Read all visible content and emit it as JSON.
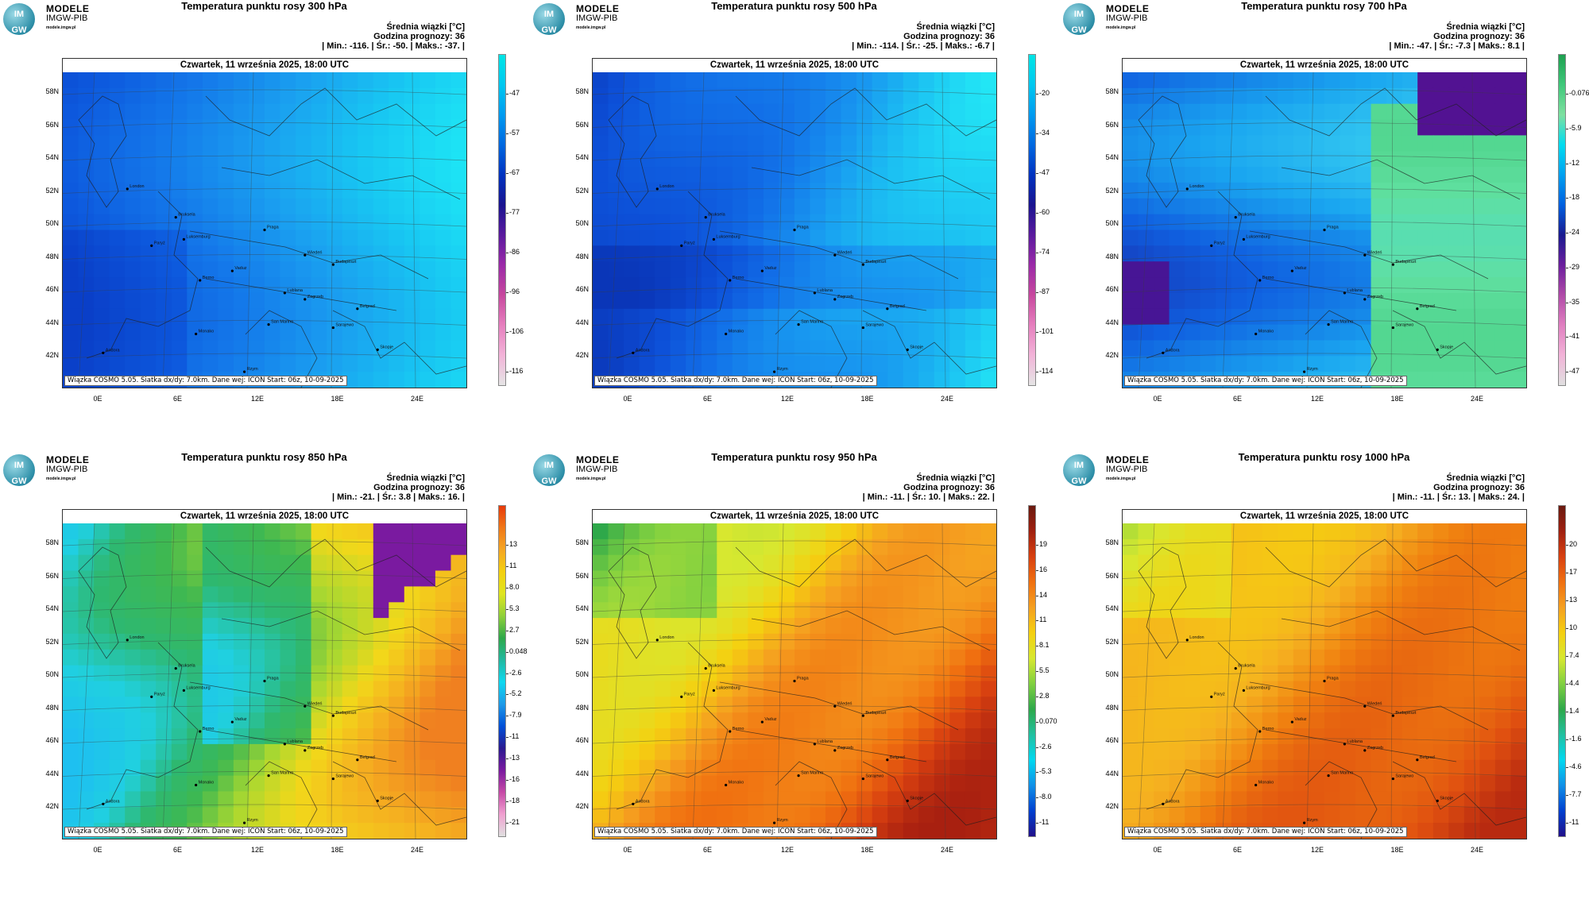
{
  "brand": {
    "line1": "MODELE",
    "line2": "IMGW-PIB",
    "url": "modele.imgw.pl",
    "circle_top": "IM",
    "circle_bottom": "GW"
  },
  "common": {
    "date": "Czwartek, 11 września 2025, 18:00 UTC",
    "unit_label": "Średnia wiązki [°C]",
    "hour_label": "Godzina prognozy: 36",
    "footer": "Wiązka COSMO 5.05. Siatka dx/dy: 7.0km. Dane wej: ICON Start: 06z, 10-09-2025",
    "lat_labels": [
      "58N",
      "56N",
      "54N",
      "52N",
      "50N",
      "48N",
      "46N",
      "44N",
      "42N"
    ],
    "lon_labels": [
      "0E",
      "6E",
      "12E",
      "18E",
      "24E"
    ],
    "cities": [
      "London",
      "Paryż",
      "Bruksela",
      "Luksemburg",
      "Berno",
      "Vaduz",
      "Praga",
      "Wiedeń",
      "Budapeszt",
      "Lublana",
      "Zagrzeb",
      "Sarajewo",
      "Belgrad",
      "Skopje",
      "Andora",
      "Monako",
      "San Marino",
      "Rzym"
    ]
  },
  "panels": [
    {
      "title": "Temperatura punktu rosy 300 hPa",
      "stats": "| Min.: -116. | Śr.: -50. | Maks.: -37. |",
      "ticks": [
        "-47",
        "-57",
        "-67",
        "-77",
        "-86",
        "-96",
        "-106",
        "-116"
      ],
      "scheme": "cold",
      "map_mode": "cold300"
    },
    {
      "title": "Temperatura punktu rosy 500 hPa",
      "stats": "| Min.: -114. | Śr.: -25. | Maks.: -6.7 |",
      "ticks": [
        "-20",
        "-34",
        "-47",
        "-60",
        "-74",
        "-87",
        "-101",
        "-114"
      ],
      "scheme": "cold",
      "map_mode": "cold500"
    },
    {
      "title": "Temperatura punktu rosy 700 hPa",
      "stats": "| Min.: -47. | Śr.: -7.3 | Maks.: 8.1 |",
      "ticks": [
        "-0.076",
        "-5.9",
        "-12",
        "-18",
        "-24",
        "-29",
        "-35",
        "-41",
        "-47"
      ],
      "scheme": "mid",
      "map_mode": "mid700"
    },
    {
      "title": "Temperatura punktu rosy 850 hPa",
      "stats": "| Min.: -21. | Śr.: 3.8 | Maks.: 16. |",
      "ticks": [
        "13",
        "11",
        "8.0",
        "5.3",
        "2.7",
        "0.048",
        "-2.6",
        "-5.2",
        "-7.9",
        "-11",
        "-13",
        "-16",
        "-18",
        "-21"
      ],
      "scheme": "warm",
      "map_mode": "warm850"
    },
    {
      "title": "Temperatura punktu rosy 950 hPa",
      "stats": "| Min.: -11. | Śr.: 10. | Maks.: 22. |",
      "ticks": [
        "19",
        "16",
        "14",
        "11",
        "8.1",
        "5.5",
        "2.8",
        "0.070",
        "-2.6",
        "-5.3",
        "-8.0",
        "-11"
      ],
      "scheme": "hot",
      "map_mode": "hot950"
    },
    {
      "title": "Temperatura punktu rosy 1000 hPa",
      "stats": "| Min.: -11. | Śr.: 13. | Maks.: 24. |",
      "ticks": [
        "20",
        "17",
        "13",
        "10",
        "7.4",
        "4.4",
        "1.4",
        "-1.6",
        "-4.6",
        "-7.7",
        "-11"
      ],
      "scheme": "hot",
      "map_mode": "hot1000"
    }
  ]
}
